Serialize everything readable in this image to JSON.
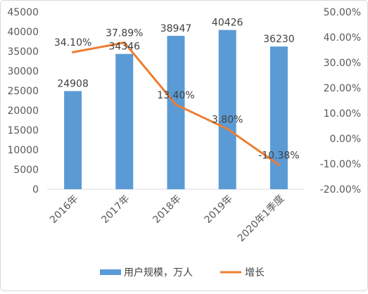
{
  "chart_data": {
    "type": "bar+line",
    "categories": [
      "2016年",
      "2017年",
      "2018年",
      "2019年",
      "2020年1季度"
    ],
    "series": [
      {
        "name": "用户规模，万人",
        "type": "bar",
        "axis": "left",
        "color": "#5b9bd5",
        "values": [
          24908,
          34346,
          38947,
          40426,
          36230
        ],
        "labels": [
          "24908",
          "34346",
          "38947",
          "40426",
          "36230"
        ]
      },
      {
        "name": "增长",
        "type": "line",
        "axis": "right",
        "color": "#ed7d31",
        "values": [
          34.1,
          37.89,
          13.4,
          3.8,
          -10.38
        ],
        "labels": [
          "34.10%",
          "37.89%",
          "13.40%",
          "3.80%",
          "-10.38%"
        ]
      }
    ],
    "y_left": {
      "range": [
        0,
        45000
      ],
      "ticks": [
        "0",
        "5000",
        "10000",
        "15000",
        "20000",
        "25000",
        "30000",
        "35000",
        "40000",
        "45000"
      ]
    },
    "y_right": {
      "range": [
        -20,
        50
      ],
      "ticks": [
        "-20.00%",
        "-10.00%",
        "0.00%",
        "10.00%",
        "20.00%",
        "30.00%",
        "40.00%",
        "50.00%"
      ]
    },
    "grid": false,
    "legend_position": "bottom",
    "legend": [
      "用户规模，万人",
      "增长"
    ]
  }
}
